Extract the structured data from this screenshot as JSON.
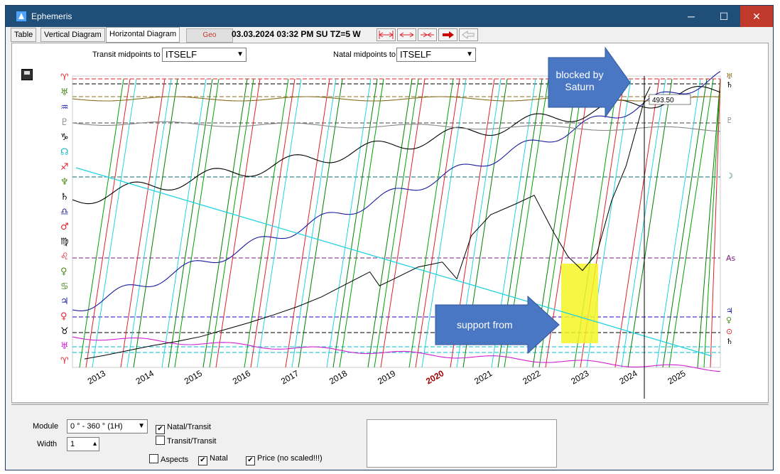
{
  "window": {
    "title": "Ephemeris",
    "minimize_glyph": "─",
    "maximize_glyph": "☐",
    "close_glyph": "✕"
  },
  "tabs": [
    {
      "label": "Table"
    },
    {
      "label": "Vertical Diagram"
    },
    {
      "label": "Horizontal Diagram"
    }
  ],
  "toolbar": {
    "geo_label": "Geo",
    "datetime": "03.03.2024   03:32 PM SU   TZ=5 W"
  },
  "midpoints": {
    "transit_label": "Transit midpoints to",
    "transit_value": "ITSELF",
    "natal_label": "Natal midpoints to",
    "natal_value": "ITSELF"
  },
  "chart_data": {
    "type": "line",
    "x_tick_labels": [
      "2013",
      "2014",
      "2015",
      "2016",
      "2017",
      "2018",
      "2019",
      "2020",
      "2021",
      "2022",
      "2023",
      "2024",
      "2025"
    ],
    "highlighted_year": "2020",
    "price_label": "493.50",
    "price_series": {
      "x": [
        2012.6,
        2013.0,
        2013.5,
        2014.0,
        2014.5,
        2015.0,
        2015.5,
        2016.0,
        2016.5,
        2017.0,
        2017.5,
        2018.0,
        2018.5,
        2018.7,
        2019.0,
        2019.5,
        2020.0,
        2020.3,
        2020.6,
        2021.0,
        2021.5,
        2021.9,
        2022.3,
        2022.6,
        2022.9,
        2023.2,
        2023.5,
        2023.8,
        2024.0,
        2024.2,
        2024.3
      ],
      "y": [
        3,
        8,
        15,
        22,
        28,
        35,
        45,
        55,
        66,
        78,
        92,
        110,
        128,
        108,
        118,
        135,
        142,
        118,
        180,
        210,
        225,
        238,
        185,
        150,
        130,
        155,
        230,
        280,
        330,
        380,
        394
      ]
    },
    "right_axis_glyphs": [
      "♅",
      "♄",
      "♇",
      "☽",
      "As",
      "♃",
      "♀",
      "⊙",
      "♄"
    ],
    "left_axis_glyphs": [
      "♈",
      "♅",
      "♒",
      "♇",
      "♑",
      "☊",
      "♐",
      "♆",
      "♄",
      "♎",
      "♂",
      "♍",
      "♌",
      "♀",
      "♋",
      "♃",
      "♀",
      "♉",
      "♅",
      "♈"
    ],
    "annotations": [
      {
        "text": "blocked by Saturn"
      },
      {
        "text": "support from"
      }
    ],
    "colors": {
      "annotation_arrow": "#4a77c4",
      "highlight_box": "#f4f425",
      "price_line": "#000000"
    }
  },
  "bottom": {
    "module_label": "Module",
    "module_value": "0 ° - 360 ° (1H)",
    "width_label": "Width",
    "width_value": "1",
    "natal_transit_label": "Natal/Transit",
    "natal_transit_checked": "✔",
    "transit_transit_label": "Transit/Transit",
    "aspects_label": "Aspects",
    "natal_label": "Natal",
    "natal_checked": "✔",
    "price_label": "Price (no scaled!!!)",
    "price_checked": "✔"
  }
}
